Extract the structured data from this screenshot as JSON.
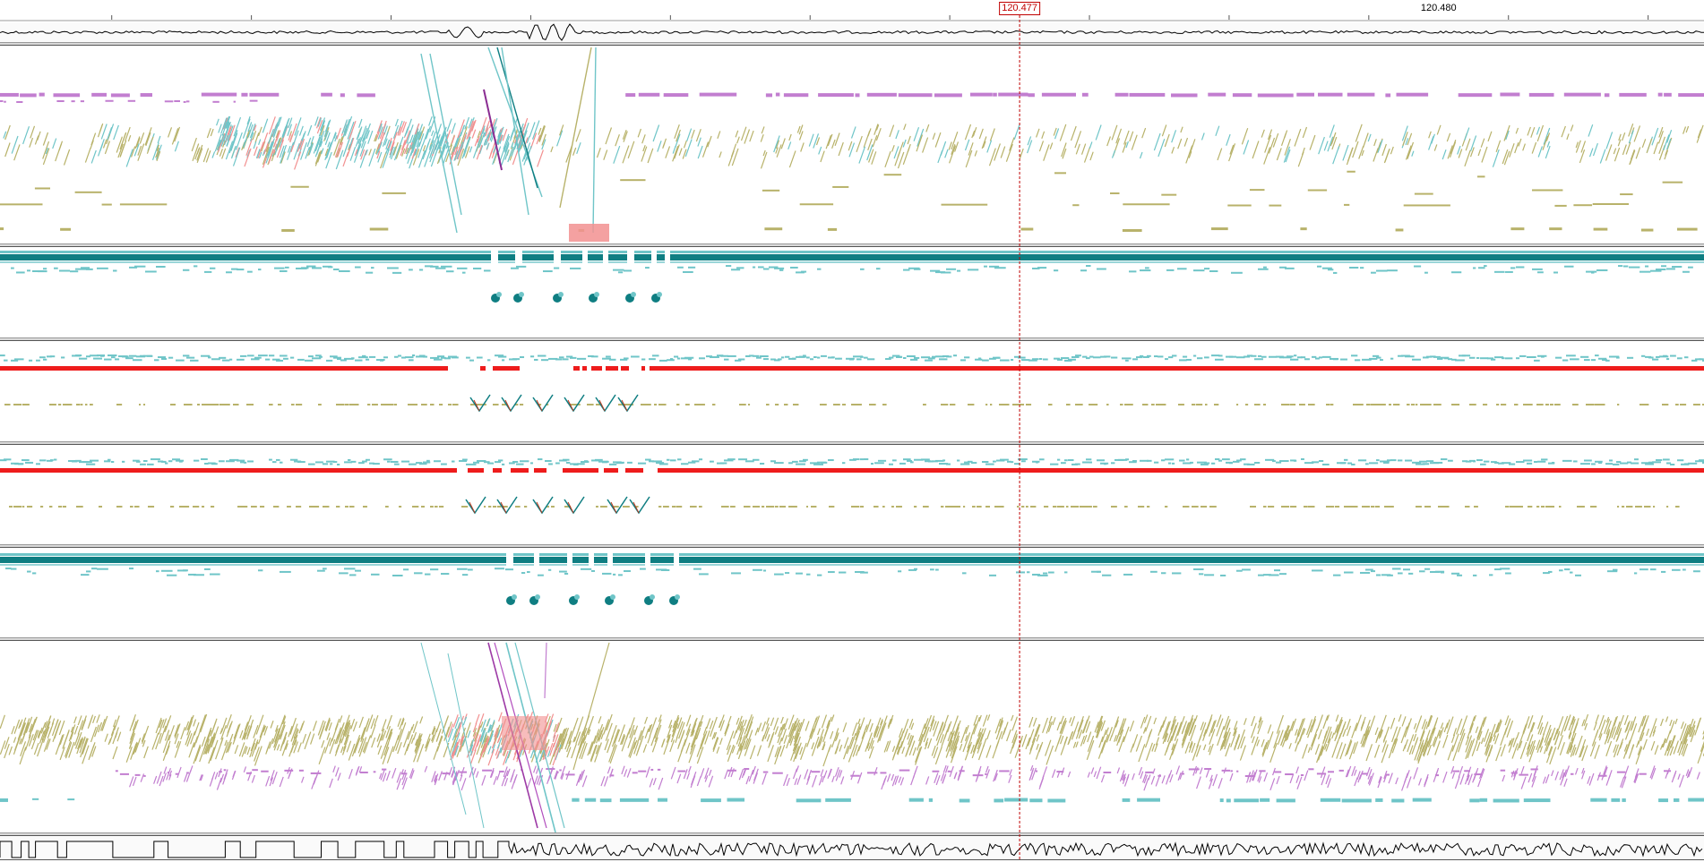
{
  "ruler": {
    "labels": [
      {
        "id": "tick-label-120480",
        "text": "120.480",
        "value": 120.48
      }
    ],
    "minor_ticks": [
      120.4705,
      120.4715,
      120.4725,
      120.4735,
      120.4745,
      120.4755,
      120.4765,
      120.4775,
      120.4785,
      120.4795,
      120.4805,
      120.4815
    ],
    "cursor": {
      "text": "120.477",
      "value": 120.477
    }
  },
  "view": {
    "start": 120.4697,
    "end": 120.4819
  },
  "colors": {
    "teal_dark": "#0f7e82",
    "teal_light": "#6fc5c8",
    "khaki": "#b8b26a",
    "purple": "#c27ed0",
    "red": "#ee1c1c",
    "salmon": "#f29090",
    "cursor": "#c00000",
    "separator": "#666666"
  },
  "tracks": [
    {
      "id": "track-coverage-top",
      "type": "coverage"
    },
    {
      "id": "track-alignment-1",
      "type": "sparse"
    },
    {
      "id": "track-alignment-2",
      "type": "dense-teal"
    },
    {
      "id": "track-alignment-3",
      "type": "red-line"
    },
    {
      "id": "track-alignment-4",
      "type": "red-line"
    },
    {
      "id": "track-alignment-5",
      "type": "dense-teal"
    },
    {
      "id": "track-alignment-6",
      "type": "sparse"
    },
    {
      "id": "track-coverage-bottom",
      "type": "coverage"
    }
  ]
}
